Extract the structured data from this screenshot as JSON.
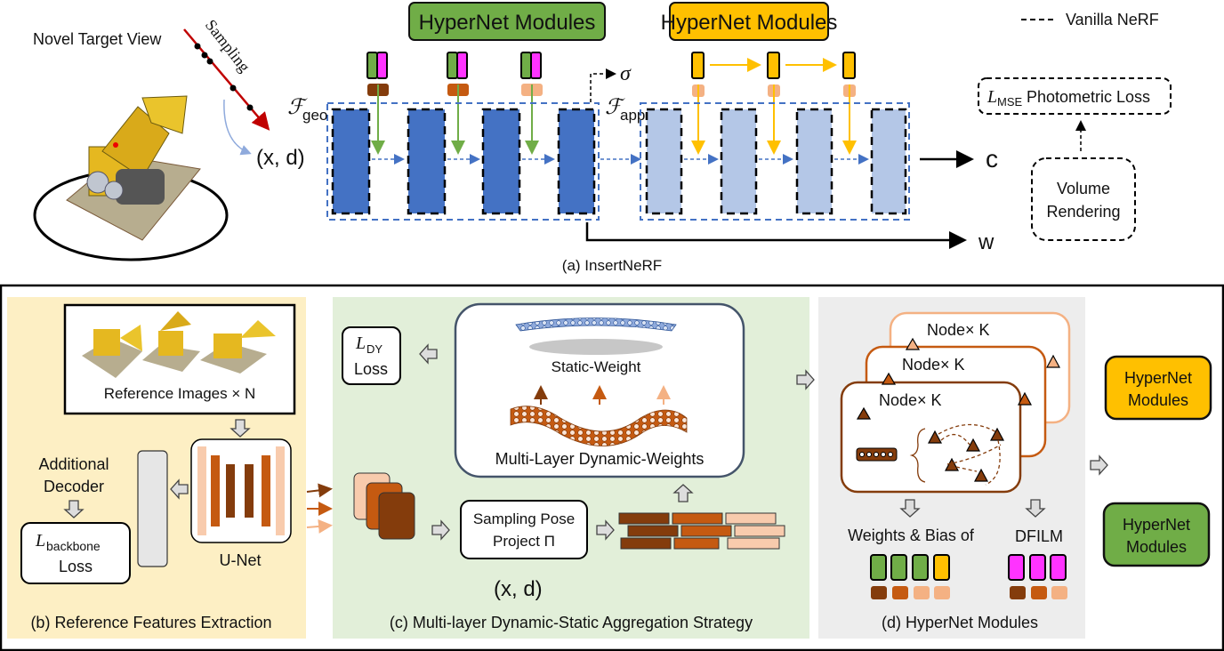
{
  "colors": {
    "green": "#70ad47",
    "magenta": "#ff33ff",
    "yellow": "#ffc000",
    "blue": "#4472c4",
    "light_blue": "#b4c7e7",
    "brown_dark": "#843c0c",
    "brown_mid": "#c55a11",
    "brown_light": "#f4b183",
    "panel_b_bg": "#fdefc4",
    "panel_c_bg": "#e2efd9",
    "panel_d_bg": "#ededed"
  },
  "top": {
    "target_view": "Novel Target View",
    "sampling": "Sampling",
    "input": "(x, d)",
    "f_symbol": "ℱ",
    "f_geo_sub": "geo",
    "f_app_sub": "app",
    "sigma": "σ",
    "hypernet_green": "HyperNet Modules",
    "hypernet_yellow": "HyperNet Modules",
    "legend_label": "Vanilla NeRF",
    "loss_symbol": "L",
    "loss_sub": "MSE",
    "loss_text": "Photometric Loss",
    "volume_line1": "Volume",
    "volume_line2": "Rendering",
    "out_c": "c",
    "out_w": "w",
    "caption": "(a) InsertNeRF"
  },
  "panel_b": {
    "ref_images": "Reference Images × N",
    "decoder_line1": "Additional",
    "decoder_line2": "Decoder",
    "loss_symbol": "L",
    "loss_sub": "backbone",
    "loss_word": "Loss",
    "unet": "U-Net",
    "caption": "(b) Reference Features Extraction"
  },
  "panel_c": {
    "loss_symbol": "L",
    "loss_sub": "DY",
    "loss_word": "Loss",
    "static_weight": "Static-Weight",
    "dynamic_weights": "Multi-Layer Dynamic-Weights",
    "sampling_line1": "Sampling Pose",
    "sampling_line2": "Project Π",
    "input": "(x, d)",
    "caption": "(c) Multi-layer Dynamic-Static Aggregation Strategy"
  },
  "panel_d": {
    "node_labels": [
      "Node× K",
      "Node× K",
      "Node× K"
    ],
    "weights_label": "Weights & Bias of",
    "dfilm_label": "DFILM",
    "caption": "(d) HyperNet Modules"
  },
  "outputs": {
    "yellow_line1": "HyperNet",
    "yellow_line2": "Modules",
    "green_line1": "HyperNet",
    "green_line2": "Modules"
  }
}
